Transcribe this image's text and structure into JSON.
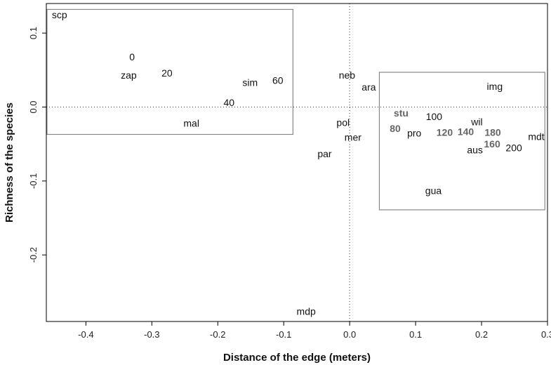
{
  "chart_data": {
    "type": "scatter",
    "title": "",
    "xlabel": "Distance of the edge (meters)",
    "ylabel": "Richness of the species",
    "xlim": [
      -0.46,
      0.3
    ],
    "ylim": [
      -0.29,
      0.14
    ],
    "xticks": [
      -0.4,
      -0.3,
      -0.2,
      -0.1,
      0.0,
      0.1,
      0.2,
      0.3
    ],
    "xtick_labels": [
      "-0.4",
      "-0.3",
      "-0.2",
      "-0.1",
      "0.0",
      "0.1",
      "0.2",
      "0.3"
    ],
    "yticks": [
      0.1,
      0.0,
      -0.1,
      -0.2
    ],
    "ytick_labels": [
      "0.1",
      "0.0",
      "-0.1",
      "-0.2"
    ],
    "grid": false,
    "reference_lines": {
      "x": 0.0,
      "y": 0.0,
      "style": "dotted"
    },
    "points": [
      {
        "label": "scp",
        "x": -0.44,
        "y": 0.125,
        "bold": false
      },
      {
        "label": "0",
        "x": -0.33,
        "y": 0.068,
        "bold": false
      },
      {
        "label": "zap",
        "x": -0.335,
        "y": 0.043,
        "bold": false
      },
      {
        "label": "20",
        "x": -0.277,
        "y": 0.046,
        "bold": false
      },
      {
        "label": "sim",
        "x": -0.151,
        "y": 0.033,
        "bold": false
      },
      {
        "label": "60",
        "x": -0.109,
        "y": 0.036,
        "bold": false
      },
      {
        "label": "40",
        "x": -0.183,
        "y": 0.006,
        "bold": false
      },
      {
        "label": "mal",
        "x": -0.24,
        "y": -0.022,
        "bold": false
      },
      {
        "label": "neb",
        "x": -0.004,
        "y": 0.043,
        "bold": false
      },
      {
        "label": "ara",
        "x": 0.029,
        "y": 0.027,
        "bold": false
      },
      {
        "label": "pol",
        "x": -0.01,
        "y": -0.021,
        "bold": false
      },
      {
        "label": "mer",
        "x": 0.005,
        "y": -0.041,
        "bold": false
      },
      {
        "label": "par",
        "x": -0.038,
        "y": -0.063,
        "bold": false
      },
      {
        "label": "mdp",
        "x": -0.066,
        "y": -0.276,
        "bold": false
      },
      {
        "label": "stu",
        "x": 0.078,
        "y": -0.008,
        "bold": true
      },
      {
        "label": "80",
        "x": 0.069,
        "y": -0.029,
        "bold": true
      },
      {
        "label": "pro",
        "x": 0.098,
        "y": -0.035,
        "bold": false
      },
      {
        "label": "100",
        "x": 0.128,
        "y": -0.013,
        "bold": false
      },
      {
        "label": "120",
        "x": 0.144,
        "y": -0.034,
        "bold": true
      },
      {
        "label": "140",
        "x": 0.176,
        "y": -0.033,
        "bold": true
      },
      {
        "label": "wil",
        "x": 0.193,
        "y": -0.02,
        "bold": false
      },
      {
        "label": "180",
        "x": 0.217,
        "y": -0.034,
        "bold": true
      },
      {
        "label": "160",
        "x": 0.216,
        "y": -0.05,
        "bold": true
      },
      {
        "label": "aus",
        "x": 0.19,
        "y": -0.058,
        "bold": false
      },
      {
        "label": "200",
        "x": 0.249,
        "y": -0.055,
        "bold": false
      },
      {
        "label": "mdt",
        "x": 0.283,
        "y": -0.04,
        "bold": false
      },
      {
        "label": "img",
        "x": 0.22,
        "y": 0.028,
        "bold": false
      },
      {
        "label": "gua",
        "x": 0.127,
        "y": -0.113,
        "bold": false
      }
    ],
    "boxes": [
      {
        "x0": -0.459,
        "y0": -0.037,
        "x1": -0.086,
        "y1": 0.132
      },
      {
        "x0": 0.045,
        "y0": -0.139,
        "x1": 0.296,
        "y1": 0.047
      }
    ]
  }
}
